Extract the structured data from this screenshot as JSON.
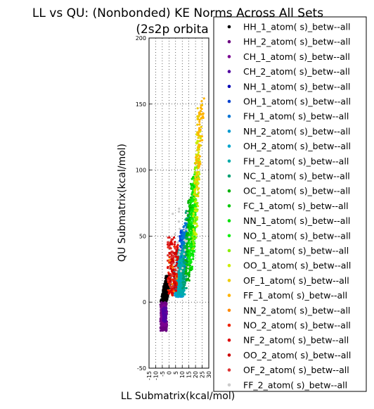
{
  "chart_data": {
    "type": "scatter",
    "title_line1": "LL vs QU: (Nonbonded) KE Norms Across All Sets",
    "title_line2": "(2s2p orbita",
    "xlabel": "LL Submatrix(kcal/mol)",
    "ylabel": "QU Submatrix(kcal/mol)",
    "xlim": [
      -15,
      30
    ],
    "ylim": [
      -50,
      200
    ],
    "xticks": [
      -15,
      -10,
      -5,
      0,
      5,
      10,
      15,
      20,
      25,
      30
    ],
    "yticks": [
      -50,
      0,
      50,
      100,
      150,
      200
    ],
    "grid": true,
    "legend_position": "right",
    "series": [
      {
        "name": "HH_1_atom( s)_betw--all",
        "color": "#000000",
        "clusters": [
          {
            "x": [
              -6,
              2
            ],
            "y": [
              0,
              20
            ],
            "slope": 2.0,
            "n": 340
          }
        ]
      },
      {
        "name": "HH_2_atom( s)_betw--all",
        "color": "#6b0080",
        "clusters": [
          {
            "x": [
              -6.5,
              -1.5
            ],
            "y": [
              -22,
              0
            ],
            "slope": 0.0,
            "n": 220
          }
        ]
      },
      {
        "name": "CH_1_atom( s)_betw--all",
        "color": "#7a0090",
        "clusters": [
          {
            "x": [
              -6,
              -2
            ],
            "y": [
              -18,
              -2
            ],
            "slope": 0.0,
            "n": 90
          }
        ]
      },
      {
        "name": "CH_2_atom( s)_betw--all",
        "color": "#5000a0",
        "clusters": [
          {
            "x": [
              -5,
              -2
            ],
            "y": [
              -15,
              -4
            ],
            "slope": 0.0,
            "n": 50
          }
        ]
      },
      {
        "name": "NH_1_atom( s)_betw--all",
        "color": "#0000b4",
        "clusters": [
          {
            "x": [
              5,
              9
            ],
            "y": [
              6,
              30
            ],
            "slope": 0.0,
            "n": 60
          }
        ]
      },
      {
        "name": "OH_1_atom( s)_betw--all",
        "color": "#0040d0",
        "clusters": [
          {
            "x": [
              6,
              11
            ],
            "y": [
              5,
              55
            ],
            "slope": 2.0,
            "n": 120
          }
        ]
      },
      {
        "name": "FH_1_atom( s)_betw--all",
        "color": "#0074d4",
        "clusters": [
          {
            "x": [
              7,
              14
            ],
            "y": [
              5,
              60
            ],
            "slope": 2.0,
            "n": 180
          }
        ]
      },
      {
        "name": "NH_2_atom( s)_betw--all",
        "color": "#0099d0",
        "clusters": [
          {
            "x": [
              4,
              10
            ],
            "y": [
              4,
              25
            ],
            "slope": 0.0,
            "n": 160
          }
        ]
      },
      {
        "name": "OH_2_atom( s)_betw--all",
        "color": "#00a4cc",
        "clusters": [
          {
            "x": [
              5,
              11
            ],
            "y": [
              4,
              30
            ],
            "slope": 0.0,
            "n": 160
          }
        ]
      },
      {
        "name": "FH_2_atom( s)_betw--all",
        "color": "#00aaaa",
        "clusters": [
          {
            "x": [
              6,
              12
            ],
            "y": [
              5,
              40
            ],
            "slope": 0.0,
            "n": 140
          }
        ]
      },
      {
        "name": "NC_1_atom( s)_betw--all",
        "color": "#00a070",
        "clusters": [
          {
            "x": [
              10,
              16
            ],
            "y": [
              10,
              70
            ],
            "slope": 2.0,
            "n": 100
          }
        ]
      },
      {
        "name": "OC_1_atom( s)_betw--all",
        "color": "#00b000",
        "clusters": [
          {
            "x": [
              12,
              18
            ],
            "y": [
              15,
              80
            ],
            "slope": 2.0,
            "n": 100
          }
        ]
      },
      {
        "name": "FC_1_atom( s)_betw--all",
        "color": "#00c800",
        "clusters": [
          {
            "x": [
              13,
              20
            ],
            "y": [
              20,
              90
            ],
            "slope": 2.0,
            "n": 100
          }
        ]
      },
      {
        "name": "NN_1_atom( s)_betw--all",
        "color": "#00e000",
        "clusters": [
          {
            "x": [
              14,
              21
            ],
            "y": [
              25,
              95
            ],
            "slope": 2.0,
            "n": 100
          }
        ]
      },
      {
        "name": "NO_1_atom( s)_betw--all",
        "color": "#10f010",
        "clusters": [
          {
            "x": [
              15,
              22
            ],
            "y": [
              30,
              100
            ],
            "slope": 2.0,
            "n": 90
          }
        ]
      },
      {
        "name": "NF_1_atom( s)_betw--all",
        "color": "#88ee00",
        "clusters": [
          {
            "x": [
              17,
              23
            ],
            "y": [
              40,
              110
            ],
            "slope": 2.0,
            "n": 70
          }
        ]
      },
      {
        "name": "OO_1_atom( s)_betw--all",
        "color": "#ccee00",
        "clusters": [
          {
            "x": [
              18,
              24
            ],
            "y": [
              50,
              130
            ],
            "slope": 2.0,
            "n": 60
          }
        ]
      },
      {
        "name": "OF_1_atom( s)_betw--all",
        "color": "#eecc00",
        "clusters": [
          {
            "x": [
              19,
              25
            ],
            "y": [
              80,
              150
            ],
            "slope": 2.0,
            "n": 55
          }
        ]
      },
      {
        "name": "FF_1_atom( s)_betw--all",
        "color": "#ffb400",
        "clusters": [
          {
            "x": [
              20,
              27
            ],
            "y": [
              100,
              157
            ],
            "slope": 2.0,
            "n": 45
          }
        ]
      },
      {
        "name": "NN_2_atom( s)_betw--all",
        "color": "#ff8800",
        "clusters": [
          {
            "x": [
              0,
              6
            ],
            "y": [
              5,
              35
            ],
            "slope": 0.0,
            "n": 25
          }
        ]
      },
      {
        "name": "NO_2_atom( s)_betw--all",
        "color": "#ee2200",
        "clusters": [
          {
            "x": [
              -1,
              6
            ],
            "y": [
              5,
              45
            ],
            "slope": 0.0,
            "n": 60
          }
        ]
      },
      {
        "name": "NF_2_atom( s)_betw--all",
        "color": "#dd0000",
        "clusters": [
          {
            "x": [
              -1,
              7
            ],
            "y": [
              5,
              50
            ],
            "slope": 0.0,
            "n": 60
          }
        ]
      },
      {
        "name": "OO_2_atom( s)_betw--all",
        "color": "#cc0000",
        "clusters": [
          {
            "x": [
              0,
              6
            ],
            "y": [
              10,
              45
            ],
            "slope": 0.0,
            "n": 40
          }
        ]
      },
      {
        "name": "OF_2_atom( s)_betw--all",
        "color": "#dd3333",
        "clusters": [
          {
            "x": [
              -1,
              5
            ],
            "y": [
              10,
              50
            ],
            "slope": 0.0,
            "n": 30
          }
        ]
      },
      {
        "name": "FF_2_atom( s)_betw--all",
        "color": "#cccccc",
        "clusters": [
          {
            "x": [
              2,
              16
            ],
            "y": [
              20,
              75
            ],
            "slope": 0.0,
            "n": 30
          }
        ]
      }
    ]
  }
}
